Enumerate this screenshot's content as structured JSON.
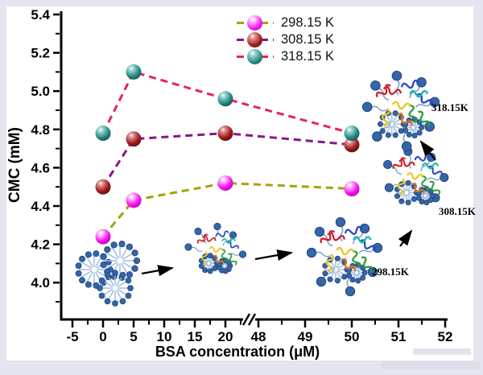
{
  "figure": {
    "background_color": "#e4e5f0",
    "paper_color": "#ffffff",
    "axis_color": "#000000"
  },
  "chart_data": {
    "type": "line",
    "title": "",
    "xlabel": "BSA concentration (μM)",
    "ylabel": "CMC (mM)",
    "x": [
      0,
      5,
      20,
      50
    ],
    "series": [
      {
        "name": "298.15 K",
        "values": [
          4.24,
          4.43,
          4.52,
          4.49
        ],
        "line_color": "#a3a300",
        "marker_color": "#fb10f0",
        "marker_light": "#ffc2ff",
        "marker_dark": "#a800ae"
      },
      {
        "name": "308.15 K",
        "values": [
          4.5,
          4.75,
          4.78,
          4.72
        ],
        "line_color": "#8a158a",
        "marker_color": "#9c1a1a",
        "marker_light": "#e09090",
        "marker_dark": "#4e0d0d"
      },
      {
        "name": "318.15 K",
        "values": [
          4.78,
          5.1,
          4.96,
          4.78
        ],
        "line_color": "#e6235e",
        "marker_color": "#27867f",
        "marker_light": "#9ad8d2",
        "marker_dark": "#0f4a47"
      }
    ],
    "x_ticks_left": [
      -5,
      0,
      5,
      10,
      15,
      20
    ],
    "x_ticks_right": [
      48,
      49,
      50,
      51,
      52
    ],
    "x_axis_break_between": [
      20,
      48
    ],
    "y_ticks": [
      "4.0",
      "4.2",
      "4.4",
      "4.6",
      "4.8",
      "5.0",
      "5.2",
      "5.4"
    ],
    "ylim": [
      3.8,
      5.42
    ],
    "grid": false,
    "legend_position": "top-center",
    "annotations": [
      "298.15K",
      "308.15K",
      "318.15K"
    ]
  }
}
